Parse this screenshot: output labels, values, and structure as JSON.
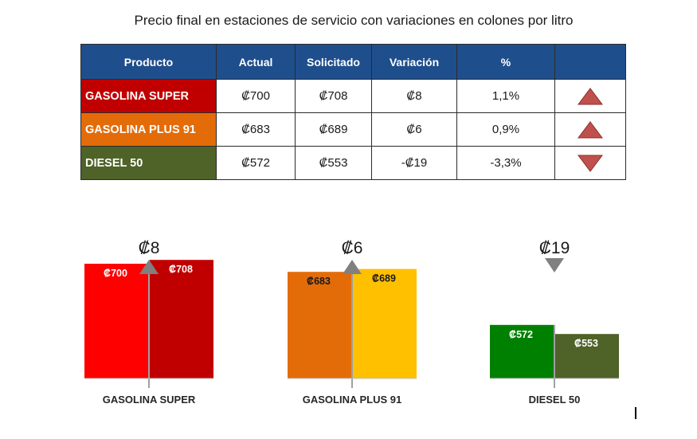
{
  "title": "Precio final en estaciones de servicio con variaciones en colones por litro",
  "table": {
    "headers": [
      "Producto",
      "Actual",
      "Solicitado",
      "Variación",
      "%",
      ""
    ],
    "rows": [
      {
        "producto": "GASOLINA SUPER",
        "actual": "₡700",
        "solicitado": "₡708",
        "variacion": "₡8",
        "pct": "1,1%",
        "trend": "up",
        "color": "#c00000"
      },
      {
        "producto": "GASOLINA PLUS 91",
        "actual": "₡683",
        "solicitado": "₡689",
        "variacion": "₡6",
        "pct": "0,9%",
        "trend": "up",
        "color": "#e36c09"
      },
      {
        "producto": "DIESEL 50",
        "actual": "₡572",
        "solicitado": "₡553",
        "variacion": "-₡19",
        "pct": "-3,3%",
        "trend": "down",
        "color": "#4f6228"
      }
    ],
    "arrow_color": "#c0504d"
  },
  "chart_data": {
    "type": "bar",
    "title": "",
    "xlabel": "",
    "ylabel": "",
    "groups": [
      {
        "name": "GASOLINA SUPER",
        "change_label": "₡8",
        "direction": "up",
        "bars": [
          {
            "name": "Actual",
            "value": 700,
            "label": "₡700",
            "color": "#ff0000"
          },
          {
            "name": "Solicitado",
            "value": 708,
            "label": "₡708",
            "color": "#c00000"
          }
        ]
      },
      {
        "name": "GASOLINA PLUS 91",
        "change_label": "₡6",
        "direction": "up",
        "bars": [
          {
            "name": "Actual",
            "value": 683,
            "label": "₡683",
            "color": "#e36c09"
          },
          {
            "name": "Solicitado",
            "value": 689,
            "label": "₡689",
            "color": "#ffc000"
          }
        ]
      },
      {
        "name": "DIESEL 50",
        "change_label": "₡19",
        "direction": "down",
        "bars": [
          {
            "name": "Actual",
            "value": 572,
            "label": "₡572",
            "color": "#008000"
          },
          {
            "name": "Solicitado",
            "value": 553,
            "label": "₡553",
            "color": "#4f6228"
          }
        ]
      }
    ],
    "value_label_colors": [
      "#ffffff",
      "#ffffff",
      "#1a1a1a",
      "#1a1a1a",
      "#ffffff",
      "#ffffff"
    ],
    "change_arrow_color": "#808080"
  }
}
